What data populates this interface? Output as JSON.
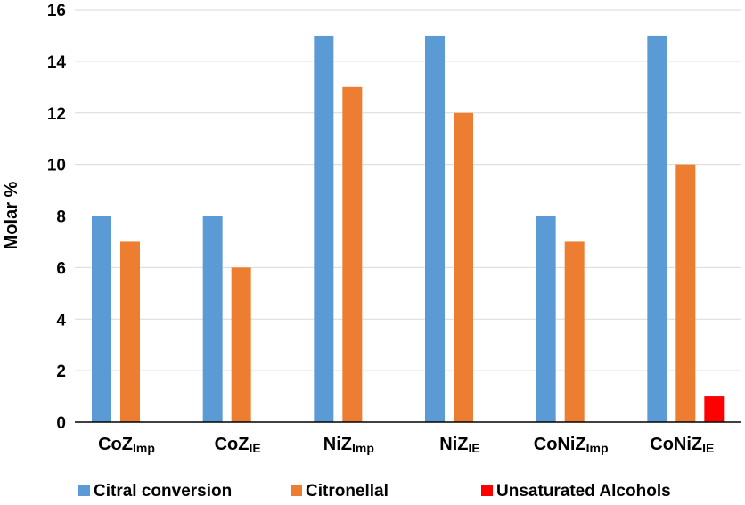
{
  "chart_data": {
    "type": "bar",
    "title": "",
    "xlabel": "",
    "ylabel": "Molar %",
    "ylim": [
      0,
      16
    ],
    "yticks": [
      0,
      2,
      4,
      6,
      8,
      10,
      12,
      14,
      16
    ],
    "grid": true,
    "legend_position": "bottom",
    "categories": [
      {
        "base": "CoZ",
        "sub": "Imp"
      },
      {
        "base": "CoZ",
        "sub": "IE"
      },
      {
        "base": "NiZ",
        "sub": "Imp"
      },
      {
        "base": "NiZ",
        "sub": "IE"
      },
      {
        "base": "CoNiZ",
        "sub": "Imp"
      },
      {
        "base": "CoNiZ",
        "sub": "IE"
      }
    ],
    "series": [
      {
        "name": "Citral conversion",
        "color": "#5b9bd5",
        "values": [
          8,
          8,
          15,
          15,
          8,
          15
        ]
      },
      {
        "name": "Citronellal",
        "color": "#ed7d31",
        "values": [
          7,
          6,
          13,
          12,
          7,
          10
        ]
      },
      {
        "name": "Unsaturated Alcohols",
        "color": "#ff0000",
        "values": [
          0,
          0,
          0,
          0,
          0,
          1
        ]
      }
    ]
  }
}
